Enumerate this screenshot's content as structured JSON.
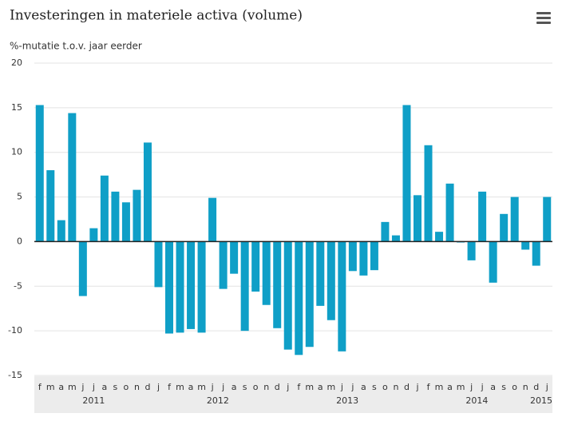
{
  "chart_data": {
    "type": "bar",
    "title": "Investeringen in materiele activa (volume)",
    "subtitle": "%-mutatie t.o.v. jaar eerder",
    "categories": [
      "f",
      "m",
      "a",
      "m",
      "j",
      "j",
      "a",
      "s",
      "o",
      "n",
      "d",
      "j",
      "f",
      "m",
      "a",
      "m",
      "j",
      "j",
      "a",
      "s",
      "o",
      "n",
      "d",
      "j",
      "f",
      "m",
      "a",
      "m",
      "j",
      "j",
      "a",
      "s",
      "o",
      "n",
      "d",
      "j",
      "f",
      "m",
      "a",
      "m",
      "j",
      "j",
      "a",
      "s",
      "o",
      "n",
      "d",
      "j"
    ],
    "years": [
      "2011",
      "2012",
      "2013",
      "2014",
      "2015"
    ],
    "values": [
      15.3,
      8.0,
      2.4,
      14.4,
      -6.1,
      1.5,
      7.4,
      5.6,
      4.4,
      5.8,
      11.1,
      -5.1,
      -10.3,
      -10.2,
      -9.8,
      -10.2,
      4.9,
      -5.3,
      -3.6,
      -10.0,
      -5.6,
      -7.1,
      -9.7,
      -12.1,
      -12.7,
      -11.8,
      -7.2,
      -8.8,
      -12.3,
      -3.3,
      -3.8,
      -3.2,
      2.2,
      0.7,
      15.3,
      5.2,
      10.8,
      1.1,
      6.5,
      -0.1,
      -2.1,
      5.6,
      -4.6,
      3.1,
      5.0,
      -0.9,
      -2.7,
      5.0
    ],
    "color": "#0f9fc7",
    "ylim": [
      -15,
      20
    ],
    "yticks": [
      -15,
      -10,
      -5,
      0,
      5,
      10,
      15,
      20
    ],
    "grid": true
  }
}
